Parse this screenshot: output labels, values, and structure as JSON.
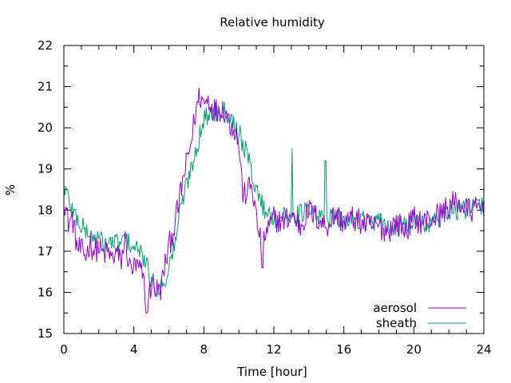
{
  "chart_data": {
    "type": "line",
    "title": "Relative humidity",
    "xlabel": "Time [hour]",
    "ylabel": "%",
    "xlim": [
      0,
      24
    ],
    "ylim": [
      15,
      22
    ],
    "xticks": [
      0,
      4,
      8,
      12,
      16,
      20,
      24
    ],
    "yticks": [
      15,
      16,
      17,
      18,
      19,
      20,
      21,
      22
    ],
    "grid": false,
    "legend_position": "bottom-right",
    "series": [
      {
        "name": "aerosol",
        "color": "#9400d3",
        "x": [
          0,
          0.25,
          0.5,
          0.75,
          1.0,
          1.25,
          1.5,
          1.75,
          2.0,
          2.25,
          2.5,
          2.75,
          3.0,
          3.25,
          3.5,
          3.75,
          4.0,
          4.25,
          4.5,
          4.75,
          5.0,
          5.25,
          5.5,
          5.75,
          6.0,
          6.25,
          6.5,
          6.75,
          7.0,
          7.25,
          7.5,
          7.75,
          8.0,
          8.25,
          8.5,
          8.75,
          9.0,
          9.25,
          9.5,
          9.75,
          10.0,
          10.25,
          10.5,
          10.75,
          11.0,
          11.25,
          11.5,
          11.75,
          12.0,
          12.5,
          13.0,
          13.5,
          14.0,
          14.5,
          15.0,
          15.5,
          16.0,
          16.5,
          17.0,
          17.5,
          18.0,
          18.5,
          19.0,
          19.5,
          20.0,
          20.5,
          21.0,
          21.5,
          22.0,
          22.5,
          23.0,
          23.5,
          24.0
        ],
        "y": [
          18.3,
          17.7,
          17.8,
          17.1,
          17.0,
          16.9,
          17.2,
          17.0,
          17.1,
          16.9,
          17.0,
          16.8,
          17.0,
          16.7,
          17.3,
          16.6,
          16.6,
          16.6,
          16.4,
          15.7,
          16.2,
          16.1,
          16.0,
          16.6,
          17.1,
          17.5,
          18.0,
          18.6,
          19.1,
          19.6,
          20.3,
          20.8,
          20.6,
          20.7,
          20.5,
          20.4,
          20.5,
          20.4,
          20.1,
          20.0,
          19.6,
          18.3,
          18.5,
          18.6,
          17.8,
          17.2,
          17.4,
          17.6,
          17.8,
          17.7,
          17.9,
          17.6,
          18.0,
          17.8,
          17.6,
          17.9,
          17.7,
          17.8,
          17.7,
          17.6,
          17.6,
          17.5,
          17.7,
          17.5,
          17.8,
          17.7,
          17.8,
          17.9,
          18.1,
          18.2,
          18.0,
          18.0,
          18.1
        ]
      },
      {
        "name": "sheath",
        "color": "#009e73",
        "x": [
          0,
          0.25,
          0.5,
          0.75,
          1.0,
          1.25,
          1.5,
          1.75,
          2.0,
          2.25,
          2.5,
          2.75,
          3.0,
          3.25,
          3.5,
          3.75,
          4.0,
          4.25,
          4.5,
          4.75,
          5.0,
          5.25,
          5.5,
          5.75,
          6.0,
          6.25,
          6.5,
          6.75,
          7.0,
          7.25,
          7.5,
          7.75,
          8.0,
          8.25,
          8.5,
          8.75,
          9.0,
          9.25,
          9.5,
          9.75,
          10.0,
          10.25,
          10.5,
          10.75,
          11.0,
          11.25,
          11.5,
          11.75,
          12.0,
          12.5,
          13.0,
          13.5,
          14.0,
          14.5,
          15.0,
          15.5,
          16.0,
          16.5,
          17.0,
          17.5,
          18.0,
          18.5,
          19.0,
          19.5,
          20.0,
          20.5,
          21.0,
          21.5,
          22.0,
          22.5,
          23.0,
          23.5,
          24.0
        ],
        "y": [
          18.6,
          18.3,
          18.0,
          17.8,
          17.6,
          17.5,
          17.4,
          17.3,
          17.3,
          17.2,
          17.2,
          17.2,
          17.2,
          17.2,
          17.3,
          17.2,
          17.1,
          17.0,
          16.9,
          16.6,
          16.3,
          16.1,
          16.1,
          16.3,
          16.6,
          17.0,
          17.6,
          18.2,
          18.6,
          19.0,
          19.4,
          19.8,
          20.2,
          20.3,
          20.4,
          20.4,
          20.5,
          20.4,
          20.3,
          20.1,
          19.9,
          19.6,
          19.3,
          18.9,
          18.5,
          18.2,
          18.0,
          17.9,
          17.8,
          17.8,
          17.9,
          17.9,
          18.0,
          17.8,
          17.8,
          17.8,
          17.7,
          17.8,
          17.8,
          17.7,
          17.7,
          17.6,
          17.6,
          17.6,
          17.7,
          17.7,
          17.7,
          17.8,
          18.0,
          18.0,
          18.0,
          18.1,
          18.1
        ]
      }
    ]
  }
}
